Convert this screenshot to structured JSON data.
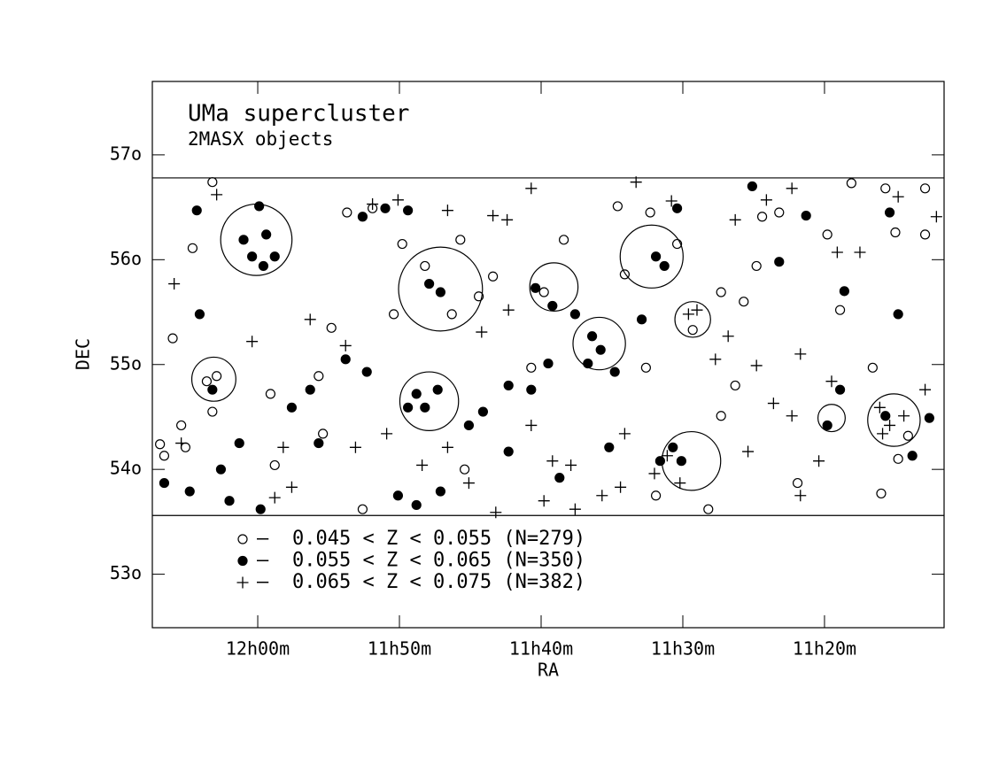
{
  "chart_data": {
    "type": "scatter",
    "title": "UMa supercluster",
    "subtitle": "2MASX objects",
    "x_label": "RA",
    "y_label": "DEC",
    "xlim": [
      727.44,
      671.56
    ],
    "ylim": [
      52.49,
      57.7
    ],
    "xticks": [
      {
        "value": 720,
        "label": "12h00m"
      },
      {
        "value": 710,
        "label": "11h50m"
      },
      {
        "value": 700,
        "label": "11h40m"
      },
      {
        "value": 690,
        "label": "11h30m"
      },
      {
        "value": 680,
        "label": "11h20m"
      }
    ],
    "yticks": [
      {
        "value": 53,
        "label": "53o"
      },
      {
        "value": 54,
        "label": "54o"
      },
      {
        "value": 55,
        "label": "55o"
      },
      {
        "value": 56,
        "label": "56o"
      },
      {
        "value": 57,
        "label": "57o"
      }
    ],
    "hlines": [
      56.78,
      53.56
    ],
    "legend_prefix": "–",
    "series": [
      {
        "name": "0.045 < Z < 0.055 (N=279)",
        "marker": "open-circle",
        "color": "#000000",
        "x": [
          723.2,
          724.6,
          726.0,
          723.6,
          722.9,
          723.2,
          726.6,
          725.1,
          725.4,
          719.1,
          718.8,
          713.7,
          711.9,
          709.8,
          708.2,
          706.3,
          714.8,
          715.7,
          710.4,
          705.7,
          704.4,
          703.4,
          699.8,
          698.4,
          700.7,
          694.6,
          692.3,
          690.4,
          694.1,
          692.6,
          689.3,
          687.3,
          685.7,
          686.3,
          687.3,
          684.4,
          683.2,
          684.8,
          679.8,
          678.1,
          675.7,
          672.9,
          675.0,
          672.9,
          678.9,
          676.6,
          674.1,
          676.0,
          674.8,
          688.2,
          712.6,
          705.4,
          691.9,
          726.9,
          715.4,
          681.9
        ],
        "values": [
          56.74,
          56.11,
          55.25,
          54.84,
          54.89,
          54.55,
          54.13,
          54.21,
          54.42,
          54.72,
          54.04,
          56.45,
          56.49,
          56.15,
          55.94,
          55.48,
          55.35,
          54.89,
          55.48,
          56.19,
          55.65,
          55.84,
          55.69,
          56.19,
          54.97,
          56.51,
          56.45,
          56.15,
          55.86,
          54.97,
          55.33,
          55.69,
          55.6,
          54.8,
          54.51,
          56.41,
          56.45,
          55.94,
          56.24,
          56.73,
          56.68,
          56.68,
          56.26,
          56.24,
          55.52,
          54.97,
          54.32,
          53.77,
          54.1,
          53.62,
          53.62,
          54.0,
          53.75,
          54.24,
          54.34,
          53.87
        ]
      },
      {
        "name": "0.055 < Z < 0.065 (N=350)",
        "marker": "filled-circle",
        "color": "#000000",
        "x": [
          719.9,
          719.4,
          720.4,
          718.8,
          721.0,
          719.6,
          724.3,
          724.1,
          712.6,
          711.0,
          709.4,
          707.9,
          707.1,
          708.8,
          708.2,
          709.4,
          707.3,
          712.3,
          713.8,
          716.3,
          717.6,
          715.7,
          721.3,
          722.6,
          722.0,
          719.8,
          724.8,
          726.6,
          710.1,
          708.8,
          707.1,
          704.1,
          702.3,
          700.7,
          699.5,
          700.4,
          699.2,
          697.6,
          696.4,
          695.8,
          696.7,
          694.8,
          692.9,
          691.9,
          691.3,
          690.4,
          683.2,
          681.3,
          685.1,
          679.8,
          678.9,
          675.7,
          673.8,
          672.6,
          675.4,
          674.8,
          678.6,
          690.7,
          690.1,
          691.6,
          695.2,
          698.7,
          702.3,
          705.1,
          723.2
        ],
        "values": [
          56.51,
          56.24,
          56.03,
          56.03,
          56.19,
          55.94,
          56.47,
          55.48,
          56.41,
          56.49,
          56.47,
          55.77,
          55.69,
          54.72,
          54.59,
          54.59,
          54.76,
          54.93,
          55.05,
          54.76,
          54.59,
          54.25,
          54.25,
          54.0,
          53.7,
          53.62,
          53.79,
          53.87,
          53.75,
          53.66,
          53.79,
          54.55,
          54.8,
          54.76,
          55.01,
          55.73,
          55.56,
          55.48,
          55.27,
          55.14,
          55.01,
          54.93,
          55.43,
          56.03,
          55.94,
          56.49,
          55.98,
          56.42,
          56.7,
          54.42,
          54.76,
          54.51,
          54.13,
          54.49,
          56.45,
          55.48,
          55.7,
          54.21,
          54.08,
          54.08,
          54.21,
          53.92,
          54.17,
          54.42,
          54.76
        ]
      },
      {
        "name": "0.065 < Z < 0.075 (N=382)",
        "marker": "plus",
        "color": "#000000",
        "x": [
          722.9,
          725.9,
          720.4,
          717.6,
          718.8,
          711.9,
          710.1,
          706.6,
          703.4,
          702.4,
          700.7,
          693.3,
          690.8,
          686.3,
          684.1,
          682.3,
          674.8,
          672.1,
          679.1,
          677.5,
          689.0,
          689.6,
          686.8,
          687.7,
          684.8,
          683.6,
          681.7,
          679.5,
          680.4,
          681.7,
          676.1,
          675.4,
          674.4,
          675.9,
          672.9,
          691.1,
          690.2,
          692.0,
          694.4,
          695.7,
          697.6,
          699.8,
          703.2,
          705.1,
          706.6,
          708.4,
          710.9,
          713.1,
          713.8,
          716.3,
          704.2,
          702.3,
          697.9,
          694.1,
          685.4,
          682.3,
          700.7,
          725.4,
          699.2,
          718.2
        ],
        "values": [
          56.62,
          55.77,
          55.22,
          53.83,
          53.73,
          56.53,
          56.57,
          56.47,
          56.42,
          56.38,
          56.68,
          56.74,
          56.56,
          56.38,
          56.57,
          56.68,
          56.6,
          56.41,
          56.07,
          56.07,
          55.52,
          55.48,
          55.27,
          55.05,
          54.99,
          54.63,
          55.1,
          54.84,
          54.08,
          53.75,
          54.59,
          54.42,
          54.51,
          54.34,
          54.76,
          54.13,
          53.87,
          53.96,
          53.83,
          53.75,
          53.62,
          53.7,
          53.59,
          53.87,
          54.21,
          54.04,
          54.34,
          54.21,
          55.18,
          55.43,
          55.31,
          55.52,
          54.04,
          54.34,
          54.17,
          54.51,
          54.42,
          54.25,
          54.08,
          54.21
        ]
      }
    ],
    "clusters": {
      "x": [
        720.1,
        723.1,
        707.1,
        707.9,
        699.1,
        695.9,
        692.2,
        689.3,
        689.4,
        679.5,
        675.1
      ],
      "values": [
        56.19,
        54.86,
        55.72,
        54.65,
        55.74,
        55.2,
        56.03,
        55.43,
        54.08,
        54.49,
        54.47
      ],
      "radius": [
        0.34,
        0.21,
        0.4,
        0.28,
        0.23,
        0.25,
        0.3,
        0.17,
        0.28,
        0.13,
        0.25
      ]
    }
  }
}
